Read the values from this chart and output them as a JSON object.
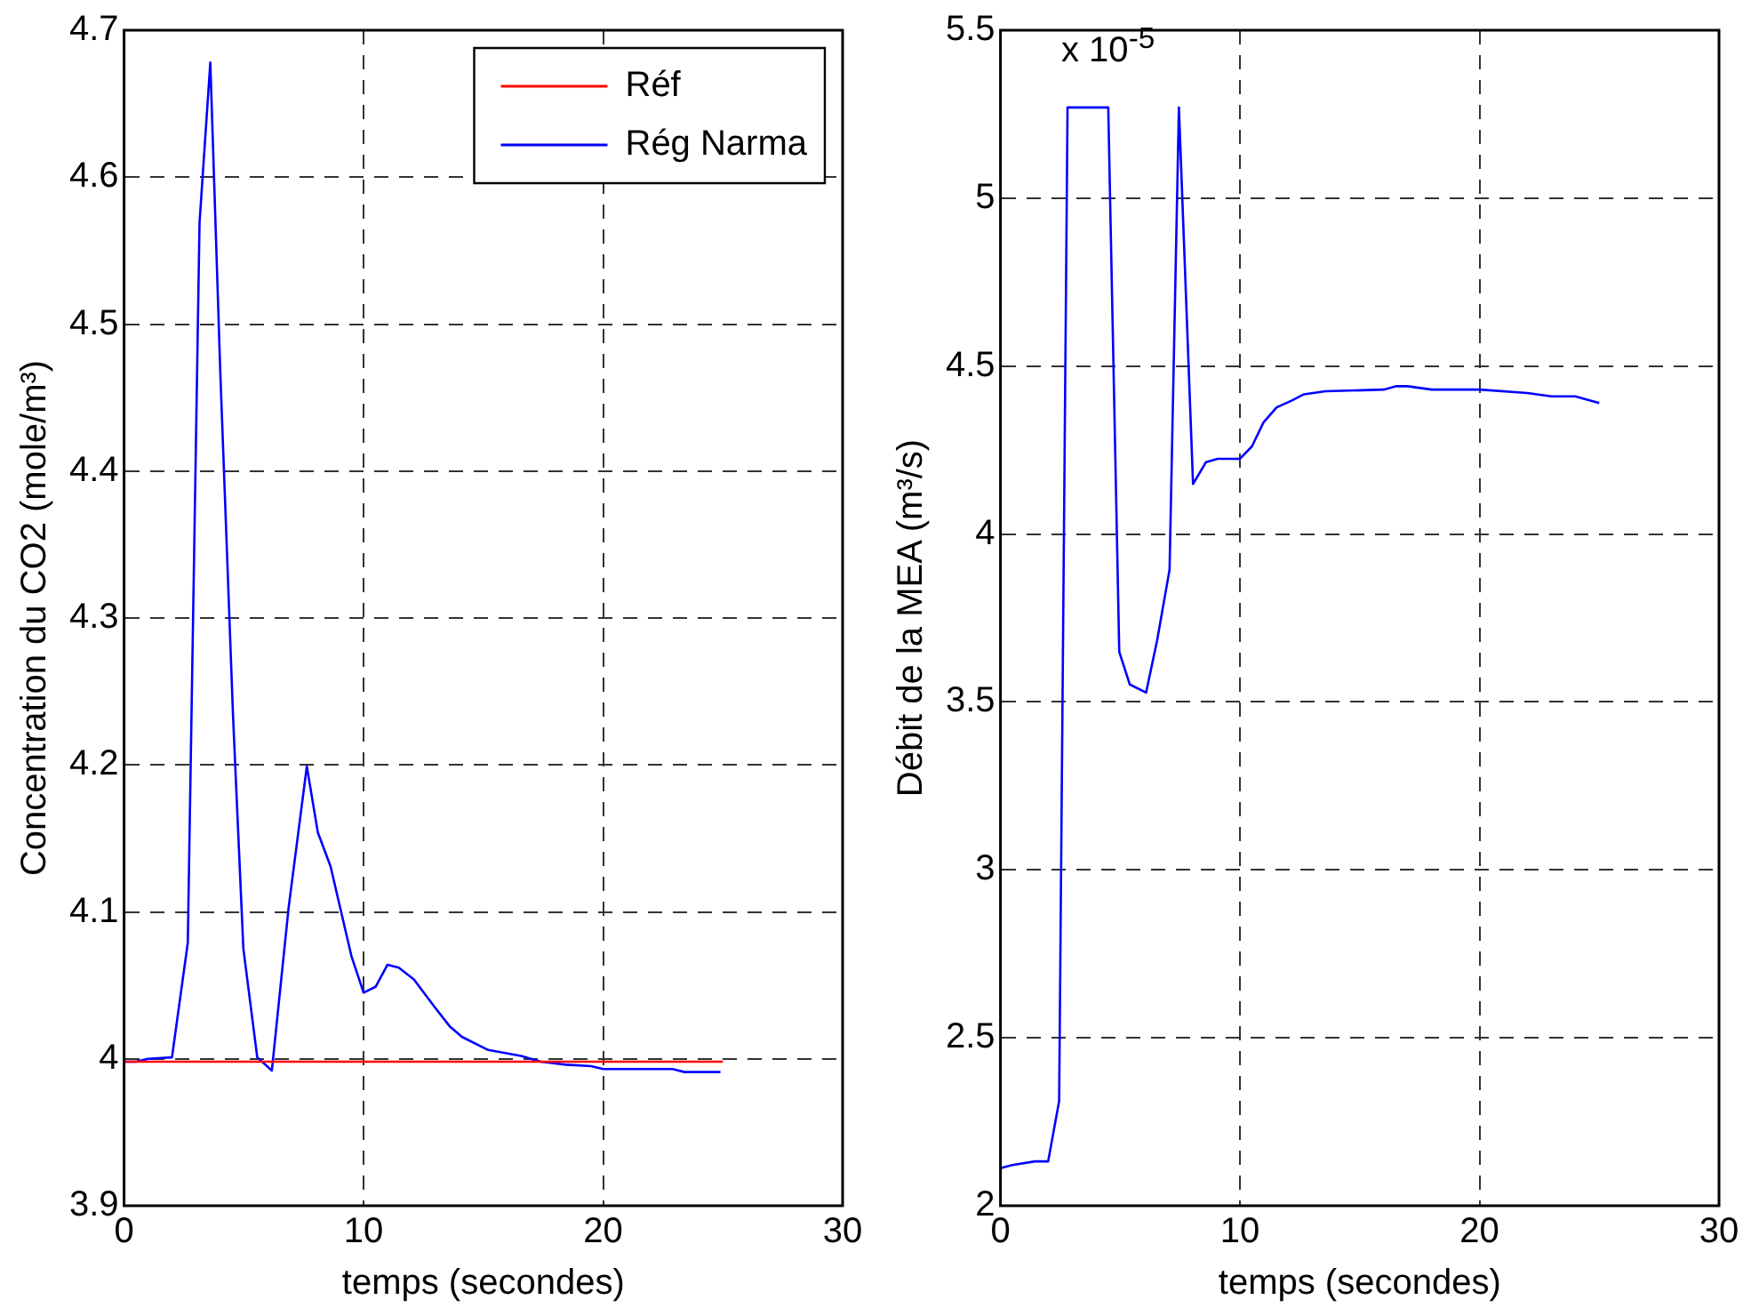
{
  "chart_data": [
    {
      "type": "line",
      "xlabel": "temps (secondes)",
      "ylabel": "Concentration du CO2 (mole/m³)",
      "xlim": [
        0,
        30
      ],
      "xticks": [
        0,
        10,
        20,
        30
      ],
      "ylim": [
        3.9,
        4.7
      ],
      "yticks": [
        3.9,
        4,
        4.1,
        4.2,
        4.3,
        4.4,
        4.5,
        4.6,
        4.7
      ],
      "grid": true,
      "legend": "top right",
      "line_style": "solid",
      "marker": "none",
      "series": [
        {
          "name": "Réf",
          "color": "#ff0000",
          "x": [
            0,
            25
          ],
          "values": [
            3.998,
            3.998
          ]
        },
        {
          "name": "Rég Narma",
          "color": "#0000ff",
          "x": [
            0,
            0.5,
            1,
            2,
            2.66,
            3.15,
            3.6,
            4.02,
            4.55,
            4.98,
            5.56,
            6.17,
            6.87,
            7.63,
            8.09,
            8.62,
            9.49,
            10,
            10.5,
            11,
            11.47,
            12.1,
            12.98,
            13.6,
            14.1,
            15.2,
            16.57,
            17.4,
            18.45,
            19.5,
            20,
            22.9,
            23.4,
            24.9
          ],
          "values": [
            3.998,
            3.998,
            4,
            4.001,
            4.079,
            4.569,
            4.678,
            4.466,
            4.233,
            4.075,
            4.001,
            3.992,
            4.103,
            4.199,
            4.154,
            4.131,
            4.07,
            4.045,
            4.049,
            4.064,
            4.062,
            4.054,
            4.035,
            4.022,
            4.015,
            4.006,
            4.002,
            3.998,
            3.996,
            3.995,
            3.993,
            3.993,
            3.991,
            3.991
          ]
        }
      ]
    },
    {
      "type": "line",
      "xlabel": "temps (secondes)",
      "ylabel": "Débit de la MEA (m³/s)",
      "annotations": [
        "x 10$^{-5}$"
      ],
      "xlim": [
        0,
        30
      ],
      "xticks": [
        0,
        10,
        20,
        30
      ],
      "ylim": [
        2,
        5.5
      ],
      "yticks": [
        2,
        2.5,
        3,
        3.5,
        4,
        4.5,
        5,
        5.5
      ],
      "grid": true,
      "line_style": "solid",
      "marker": "none",
      "series": [
        {
          "color": "#0000ff",
          "x": [
            0,
            0.49,
            1.44,
            1.99,
            2.45,
            2.8,
            4.5,
            4.96,
            5.4,
            6.08,
            6.54,
            7.06,
            7.45,
            8.04,
            8.58,
            9.07,
            10,
            10.5,
            10.98,
            11.53,
            12.15,
            12.67,
            13.57,
            16,
            16.5,
            17,
            18,
            20,
            22,
            23,
            24,
            25
          ],
          "values": [
            2.112,
            2.121,
            2.132,
            2.132,
            2.312,
            5.27,
            5.27,
            3.649,
            3.552,
            3.528,
            3.683,
            3.894,
            5.27,
            4.149,
            4.214,
            4.224,
            4.224,
            4.261,
            4.332,
            4.377,
            4.397,
            4.416,
            4.425,
            4.43,
            4.44,
            4.44,
            4.43,
            4.43,
            4.42,
            4.41,
            4.41,
            4.39
          ]
        }
      ]
    }
  ]
}
